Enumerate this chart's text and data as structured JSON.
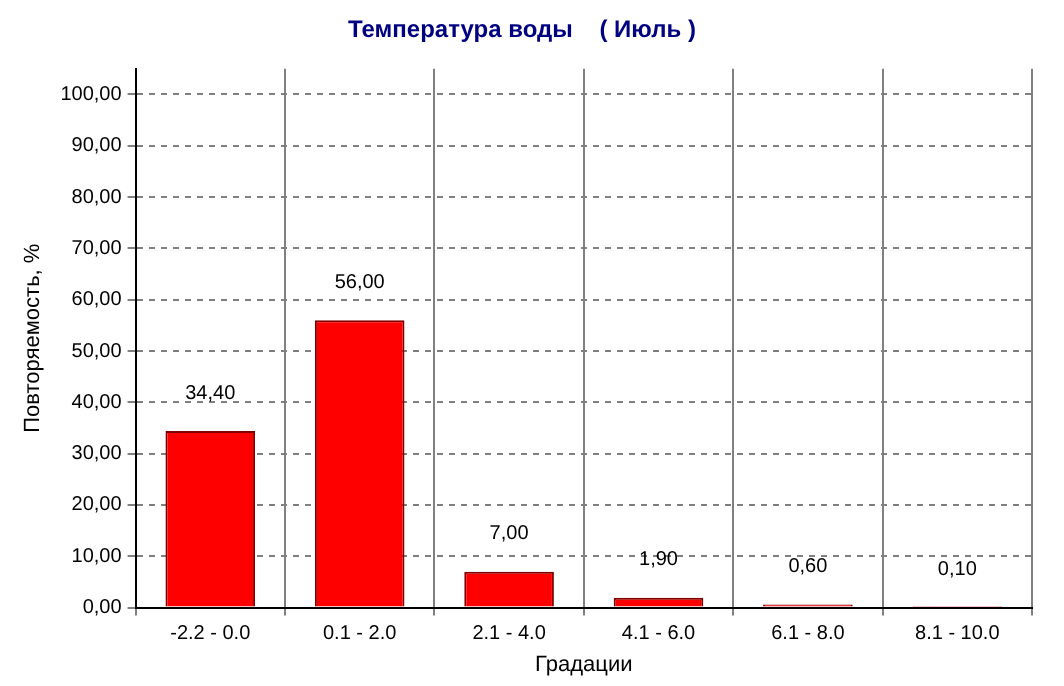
{
  "chart_data": {
    "type": "bar",
    "title": "Температура воды    ( Июль )",
    "xlabel": "Градации",
    "ylabel": "Повторяемость, %",
    "categories": [
      "-2.2 - 0.0",
      "0.1 - 2.0",
      "2.1 - 4.0",
      "4.1 - 6.0",
      "6.1 - 8.0",
      "8.1 - 10.0"
    ],
    "values": [
      34.4,
      56.0,
      7.0,
      1.9,
      0.6,
      0.1
    ],
    "value_labels": [
      "34,40",
      "56,00",
      "7,00",
      "1,90",
      "0,60",
      "0,10"
    ],
    "color": "#ff0000",
    "ylim": [
      0,
      105
    ],
    "yticks": [
      {
        "value": 0,
        "label": "0,00"
      },
      {
        "value": 10,
        "label": "10,00"
      },
      {
        "value": 20,
        "label": "20,00"
      },
      {
        "value": 30,
        "label": "30,00"
      },
      {
        "value": 40,
        "label": "40,00"
      },
      {
        "value": 50,
        "label": "50,00"
      },
      {
        "value": 60,
        "label": "60,00"
      },
      {
        "value": 70,
        "label": "70,00"
      },
      {
        "value": 80,
        "label": "80,00"
      },
      {
        "value": 90,
        "label": "90,00"
      },
      {
        "value": 100,
        "label": "100,00"
      }
    ],
    "grid": true,
    "line_style": "dashed"
  }
}
